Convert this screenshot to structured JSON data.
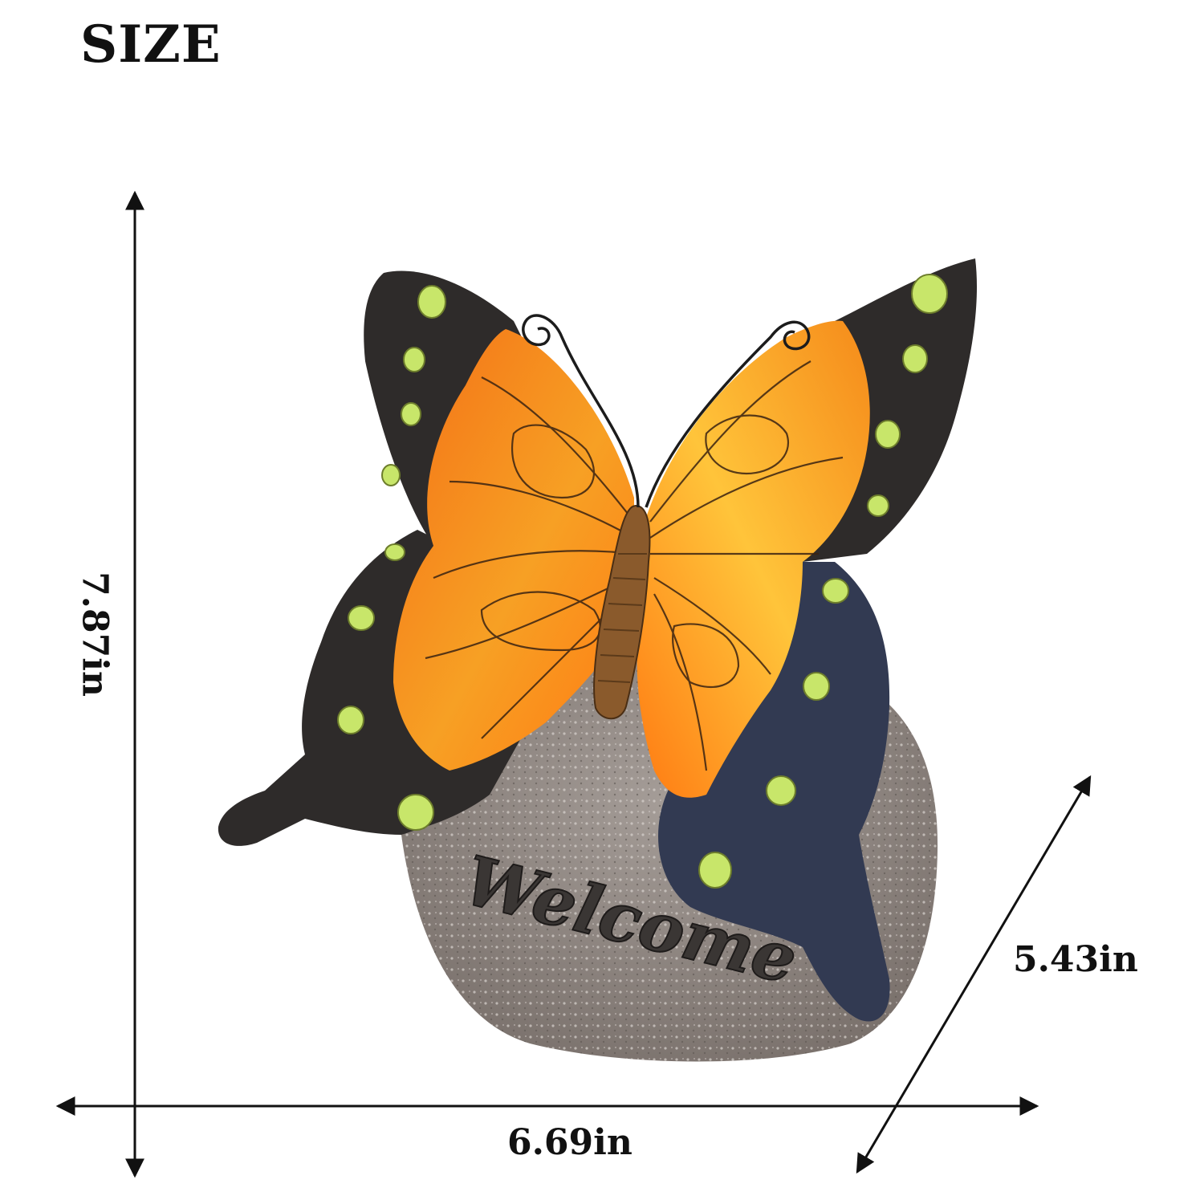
{
  "title": "SIZE",
  "product": {
    "name": "butterfly-welcome-stone-statue",
    "engraving": "Welcome",
    "colors": {
      "wing_orange": "#f7941d",
      "wing_orange_light": "#ffc43a",
      "wing_black": "#2e2b2a",
      "wing_blue_black": "#323a52",
      "spot_green": "#c8e66a",
      "stone_gray": "#8d8580",
      "body_brown": "#8a5a2c"
    }
  },
  "dimensions": {
    "height": "7.87in",
    "width": "6.69in",
    "depth": "5.43in"
  }
}
